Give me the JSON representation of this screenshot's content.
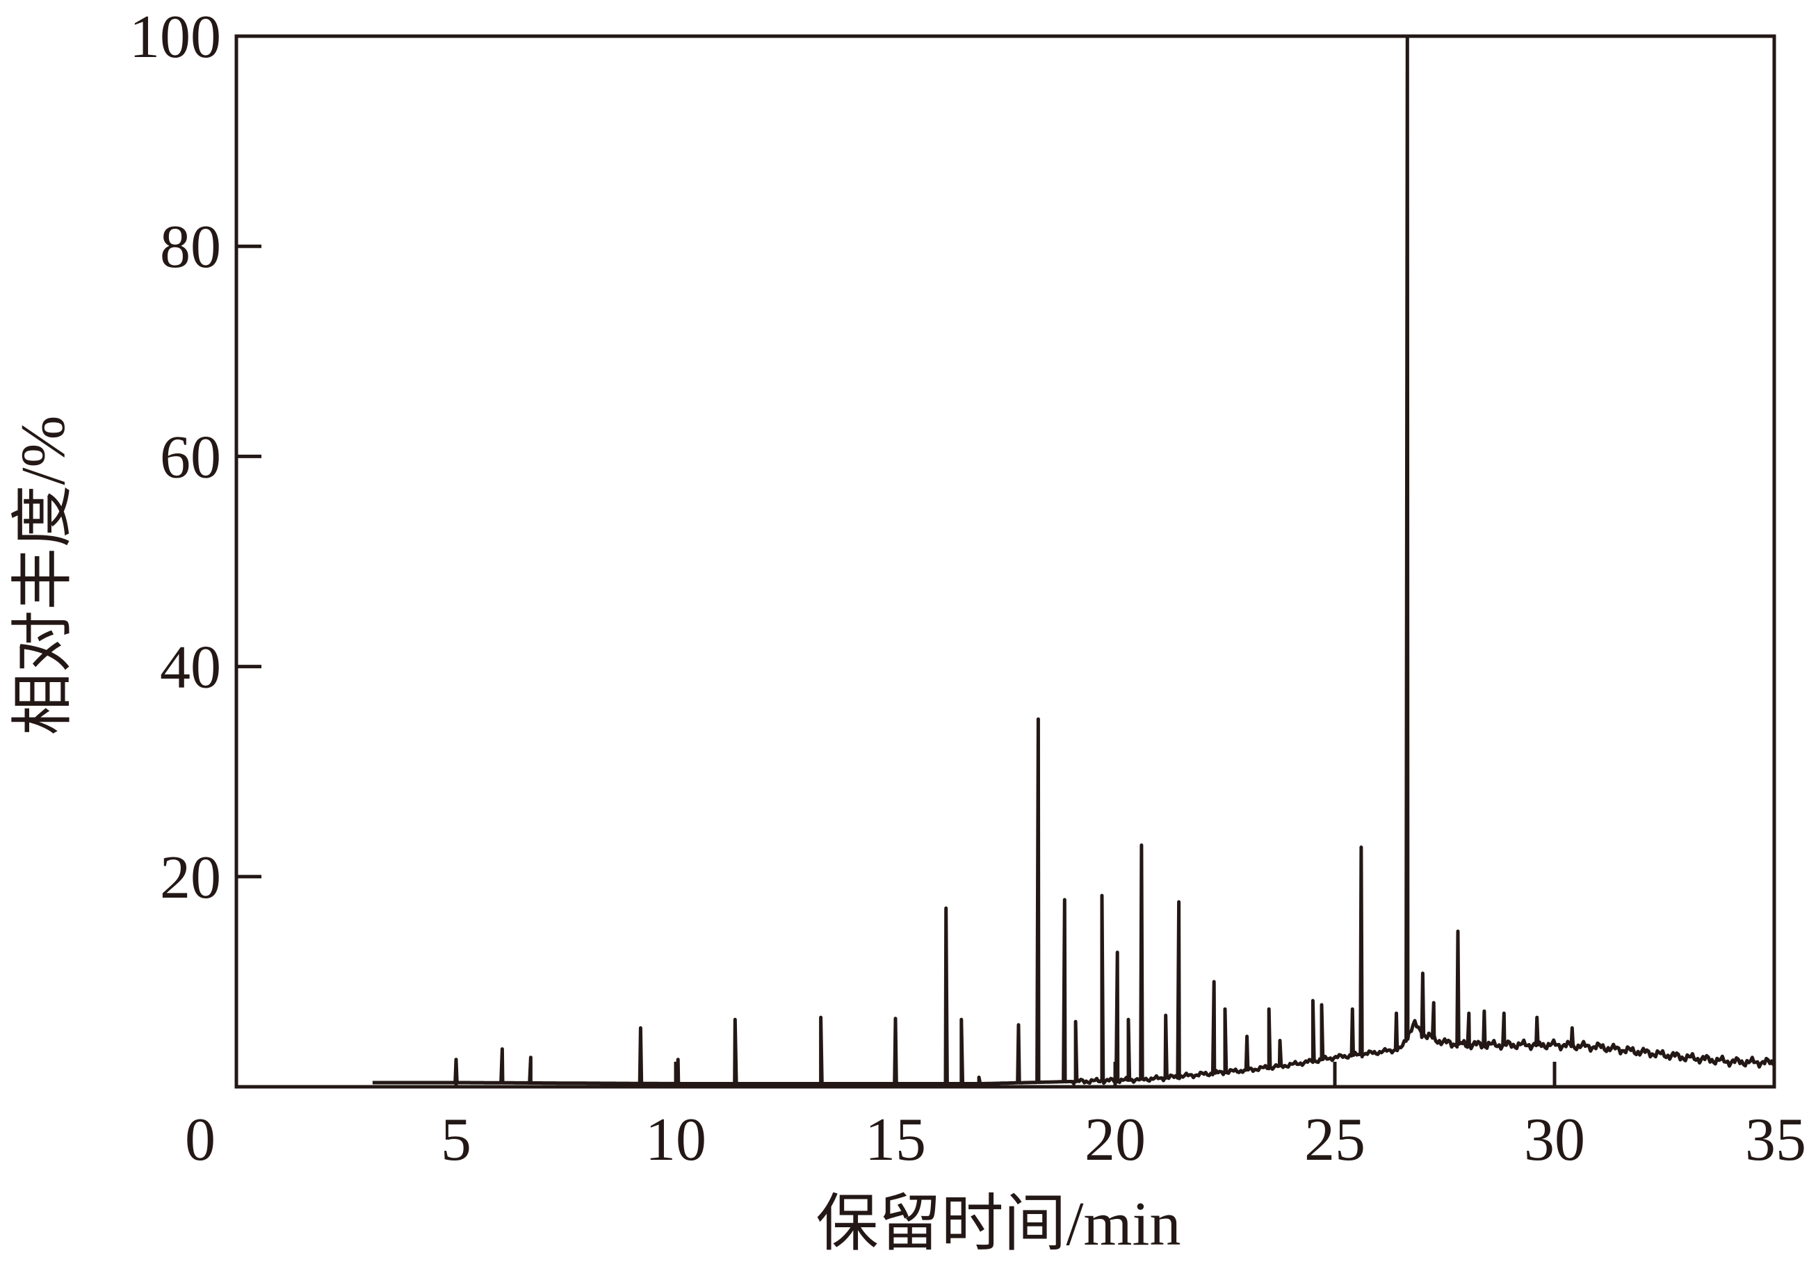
{
  "chart_data": {
    "type": "line",
    "title": "",
    "xlabel": "保留时间/min",
    "ylabel": "相对丰度/%",
    "xlim": [
      0,
      35
    ],
    "ylim": [
      0,
      100
    ],
    "xticks": [
      0,
      5,
      10,
      15,
      20,
      25,
      30,
      35
    ],
    "yticks": [
      20,
      40,
      60,
      80,
      100
    ],
    "xtick_labels": [
      "0",
      "5",
      "10",
      "15",
      "20",
      "25",
      "30",
      "35"
    ],
    "ytick_labels": [
      "20",
      "40",
      "60",
      "80",
      "100"
    ],
    "grid": false,
    "line_color": "#231815",
    "baseline": [
      [
        3.1,
        0.4
      ],
      [
        5.0,
        0.4
      ],
      [
        10.0,
        0.3
      ],
      [
        15.0,
        0.3
      ],
      [
        17.0,
        0.3
      ],
      [
        19.0,
        0.5
      ],
      [
        20.0,
        0.6
      ],
      [
        21.0,
        0.8
      ],
      [
        22.0,
        1.2
      ],
      [
        23.0,
        1.6
      ],
      [
        24.0,
        2.1
      ],
      [
        25.0,
        2.8
      ],
      [
        26.0,
        3.3
      ],
      [
        26.5,
        3.6
      ],
      [
        26.8,
        6.0
      ],
      [
        27.0,
        5.0
      ],
      [
        27.5,
        4.2
      ],
      [
        28.0,
        4.0
      ],
      [
        29.0,
        4.0
      ],
      [
        30.0,
        4.0
      ],
      [
        31.0,
        3.8
      ],
      [
        32.0,
        3.3
      ],
      [
        33.0,
        2.8
      ],
      [
        34.0,
        2.4
      ],
      [
        35.0,
        2.3
      ]
    ],
    "peaks": [
      {
        "x": 5.0,
        "y": 2.6
      },
      {
        "x": 6.05,
        "y": 3.6
      },
      {
        "x": 6.7,
        "y": 2.8
      },
      {
        "x": 9.2,
        "y": 5.6
      },
      {
        "x": 10.05,
        "y": 2.6
      },
      {
        "x": 11.35,
        "y": 6.4
      },
      {
        "x": 13.3,
        "y": 6.6
      },
      {
        "x": 15.0,
        "y": 6.5
      },
      {
        "x": 16.15,
        "y": 17.0
      },
      {
        "x": 16.5,
        "y": 6.4
      },
      {
        "x": 16.9,
        "y": 0.9
      },
      {
        "x": 17.8,
        "y": 5.9
      },
      {
        "x": 18.25,
        "y": 35.0
      },
      {
        "x": 18.85,
        "y": 17.8
      },
      {
        "x": 19.1,
        "y": 6.2
      },
      {
        "x": 19.7,
        "y": 18.2
      },
      {
        "x": 20.05,
        "y": 12.8
      },
      {
        "x": 20.3,
        "y": 6.4
      },
      {
        "x": 20.6,
        "y": 23.0
      },
      {
        "x": 21.15,
        "y": 6.8
      },
      {
        "x": 21.45,
        "y": 17.6
      },
      {
        "x": 22.25,
        "y": 10.0
      },
      {
        "x": 22.5,
        "y": 7.4
      },
      {
        "x": 23.0,
        "y": 4.8
      },
      {
        "x": 23.5,
        "y": 7.4
      },
      {
        "x": 23.75,
        "y": 4.4
      },
      {
        "x": 24.5,
        "y": 8.2
      },
      {
        "x": 24.7,
        "y": 7.8
      },
      {
        "x": 25.4,
        "y": 7.4
      },
      {
        "x": 25.6,
        "y": 22.8
      },
      {
        "x": 26.4,
        "y": 7.0
      },
      {
        "x": 26.65,
        "y": 100.0
      },
      {
        "x": 27.0,
        "y": 10.8
      },
      {
        "x": 27.25,
        "y": 8.0
      },
      {
        "x": 27.8,
        "y": 14.8
      },
      {
        "x": 28.05,
        "y": 7.0
      },
      {
        "x": 28.4,
        "y": 7.2
      },
      {
        "x": 28.85,
        "y": 7.0
      },
      {
        "x": 29.6,
        "y": 6.6
      },
      {
        "x": 30.4,
        "y": 5.6
      }
    ]
  }
}
